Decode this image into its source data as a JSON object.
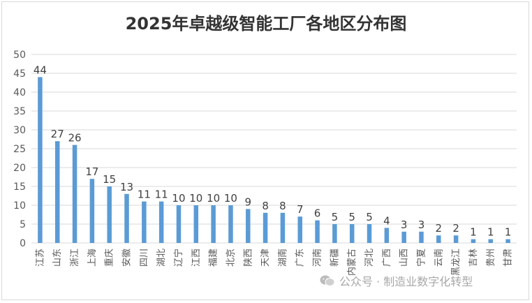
{
  "chart_data": {
    "type": "bar",
    "title": "2025年卓越级智能工厂各地区分布图",
    "xlabel": "",
    "ylabel": "",
    "ylim": [
      0,
      50
    ],
    "yticks": [
      0,
      5,
      10,
      15,
      20,
      25,
      30,
      35,
      40,
      45,
      50
    ],
    "grid": true,
    "legend": "none",
    "categories": [
      "江苏",
      "山东",
      "浙江",
      "上海",
      "重庆",
      "安徽",
      "四川",
      "湖北",
      "辽宁",
      "江西",
      "福建",
      "北京",
      "陕西",
      "天津",
      "湖南",
      "广东",
      "河南",
      "新疆",
      "内蒙古",
      "河北",
      "广西",
      "山西",
      "宁夏",
      "云南",
      "黑龙江",
      "吉林",
      "贵州",
      "甘肃"
    ],
    "values": [
      44,
      27,
      26,
      17,
      15,
      13,
      11,
      11,
      10,
      10,
      10,
      10,
      9,
      8,
      8,
      7,
      6,
      5,
      5,
      5,
      4,
      3,
      3,
      2,
      2,
      1,
      1,
      1
    ],
    "bar_color": "#5b9bd5"
  },
  "watermark": {
    "text": "公众号 · 制造业数字化转型",
    "icon": "wechat-icon"
  }
}
